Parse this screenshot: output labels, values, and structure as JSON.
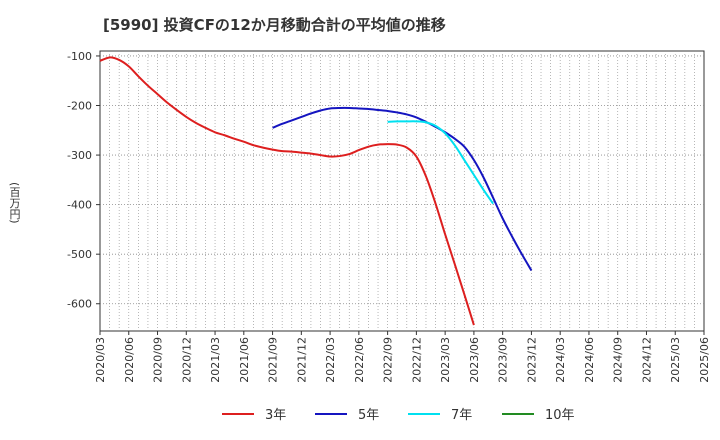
{
  "chart_data": {
    "type": "line",
    "title": "[5990]  投資CFの12か月移動合計の平均値の推移",
    "ylabel": "(百万円)",
    "xlabel": "",
    "ylim": [
      -655,
      -90
    ],
    "yticks": [
      -100,
      -200,
      -300,
      -400,
      -500,
      -600
    ],
    "ytick_labels": [
      "-100",
      "-200",
      "-300",
      "-400",
      "-500",
      "-600"
    ],
    "x_categories": [
      "2020/03",
      "2020/06",
      "2020/09",
      "2020/12",
      "2021/03",
      "2021/06",
      "2021/09",
      "2021/12",
      "2022/03",
      "2022/06",
      "2022/09",
      "2022/12",
      "2023/03",
      "2023/06",
      "2023/09",
      "2023/12",
      "2024/03",
      "2024/06",
      "2024/09",
      "2024/12",
      "2025/03",
      "2025/06"
    ],
    "grid": true,
    "legend_position": "bottom",
    "series": [
      {
        "name": "3年",
        "color": "#dd1f1f",
        "start_index": 0,
        "values": [
          -110,
          -103,
          -108,
          -121,
          -141,
          -160,
          -177,
          -194,
          -209,
          -223,
          -235,
          -245,
          -254,
          -260,
          -267,
          -273,
          -280,
          -285,
          -289,
          -292,
          -293,
          -295,
          -297,
          -300,
          -303,
          -302,
          -298,
          -290,
          -283,
          -279,
          -278,
          -279,
          -285,
          -303,
          -343,
          -398,
          -460,
          -520,
          -581,
          -643
        ]
      },
      {
        "name": "5年",
        "color": "#1515c0",
        "start_index": 18,
        "values": [
          -245,
          -237,
          -230,
          -223,
          -216,
          -210,
          -206,
          -205,
          -205,
          -206,
          -207,
          -209,
          -211,
          -214,
          -218,
          -224,
          -233,
          -243,
          -254,
          -267,
          -283,
          -310,
          -345,
          -386,
          -428,
          -465,
          -500,
          -533
        ]
      },
      {
        "name": "7年",
        "color": "#00e0f0",
        "start_index": 30,
        "values": [
          -233,
          -232,
          -232,
          -232,
          -234,
          -241,
          -256,
          -280,
          -310,
          -340,
          -370,
          -398
        ]
      },
      {
        "name": "10年",
        "color": "#228b22",
        "start_index": 0,
        "values": []
      }
    ]
  }
}
